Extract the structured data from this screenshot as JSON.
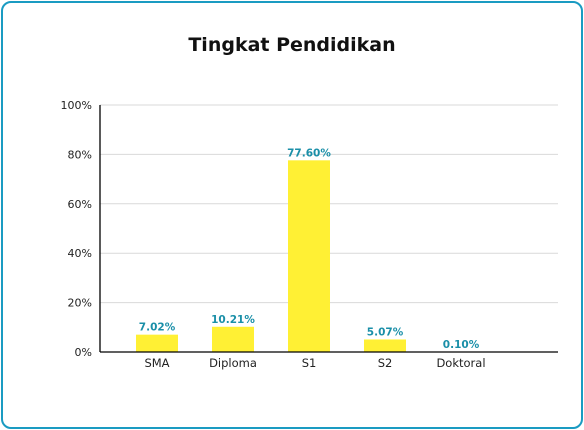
{
  "colors": {
    "border": "#1a9bc2",
    "bar": "#fff034",
    "label": "#1a8fa8",
    "grid": "#d9d9d9",
    "axis": "#000000"
  },
  "chart_data": {
    "type": "bar",
    "title": "Tingkat Pendidikan",
    "xlabel": "",
    "ylabel": "",
    "categories": [
      "SMA",
      "Diploma",
      "S1",
      "S2",
      "Doktoral"
    ],
    "values": [
      7.02,
      10.21,
      77.6,
      5.07,
      0.1
    ],
    "data_labels": [
      "7.02%",
      "10.21%",
      "77.60%",
      "5.07%",
      "0.10%"
    ],
    "ylim": [
      0,
      100
    ],
    "yticks": [
      0,
      20,
      40,
      60,
      80,
      100
    ],
    "ytick_labels": [
      "0%",
      "20%",
      "40%",
      "60%",
      "80%",
      "100%"
    ],
    "grid": true,
    "legend": "none"
  }
}
